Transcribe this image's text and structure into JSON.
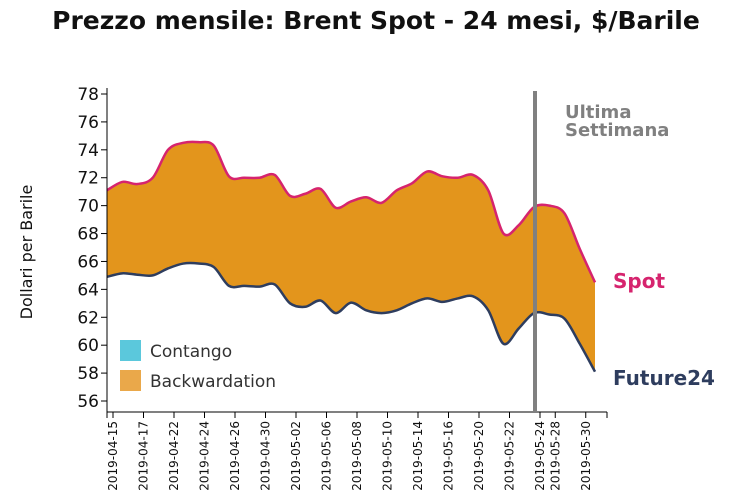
{
  "chart_data": {
    "type": "area",
    "title": "Prezzo mensile: Brent Spot - 24 mesi, $/Barile",
    "ylabel": "Dollari per Barile",
    "xlabel": "",
    "ylim": [
      55,
      78
    ],
    "yticks": [
      56,
      58,
      60,
      62,
      64,
      66,
      68,
      70,
      72,
      74,
      76,
      78
    ],
    "dates": [
      "2019-04-15",
      "2019-04-16",
      "2019-04-17",
      "2019-04-18",
      "2019-04-22",
      "2019-04-23",
      "2019-04-24",
      "2019-04-25",
      "2019-04-26",
      "2019-04-29",
      "2019-04-30",
      "2019-05-01",
      "2019-05-02",
      "2019-05-03",
      "2019-05-06",
      "2019-05-07",
      "2019-05-08",
      "2019-05-09",
      "2019-05-10",
      "2019-05-13",
      "2019-05-14",
      "2019-05-15",
      "2019-05-16",
      "2019-05-17",
      "2019-05-20",
      "2019-05-21",
      "2019-05-22",
      "2019-05-23",
      "2019-05-24",
      "2019-05-28",
      "2019-05-29",
      "2019-05-30",
      "2019-05-31"
    ],
    "xtick_labels": [
      "2019-04-15",
      "2019-04-17",
      "2019-04-22",
      "2019-04-24",
      "2019-04-26",
      "2019-04-30",
      "2019-05-02",
      "2019-05-06",
      "2019-05-08",
      "2019-05-10",
      "2019-05-14",
      "2019-05-16",
      "2019-05-20",
      "2019-05-22",
      "2019-05-24",
      "2019-05-28",
      "2019-05-30"
    ],
    "series": [
      {
        "name": "Spot",
        "color": "#d6246e",
        "values": [
          71.1,
          71.7,
          71.55,
          72.0,
          74.0,
          74.5,
          74.55,
          74.3,
          72.1,
          72.0,
          72.0,
          72.2,
          70.7,
          70.85,
          71.2,
          69.85,
          70.3,
          70.6,
          70.2,
          71.1,
          71.6,
          72.45,
          72.1,
          72.0,
          72.2,
          71.1,
          68.0,
          68.6,
          69.9,
          70.0,
          69.45,
          66.9,
          64.5
        ]
      },
      {
        "name": "Future24",
        "color": "#2e3d5e",
        "values": [
          64.9,
          65.15,
          65.05,
          65.0,
          65.5,
          65.85,
          65.85,
          65.6,
          64.25,
          64.25,
          64.2,
          64.35,
          63.0,
          62.75,
          63.2,
          62.3,
          63.05,
          62.5,
          62.3,
          62.5,
          63.0,
          63.35,
          63.1,
          63.35,
          63.5,
          62.5,
          60.1,
          61.2,
          62.3,
          62.2,
          61.9,
          60.1,
          58.1
        ]
      }
    ],
    "fill_color": "#e3951c",
    "annotation": {
      "text_line1": "Ultima",
      "text_line2": "Settimana",
      "date": "2019-05-24",
      "color": "#808080"
    },
    "legend": {
      "placement": "bottom",
      "items": [
        {
          "label": "Contango",
          "color": "#5bc8dc"
        },
        {
          "label": "Backwardation",
          "color": "#eaa84a"
        }
      ]
    },
    "grid": false
  }
}
